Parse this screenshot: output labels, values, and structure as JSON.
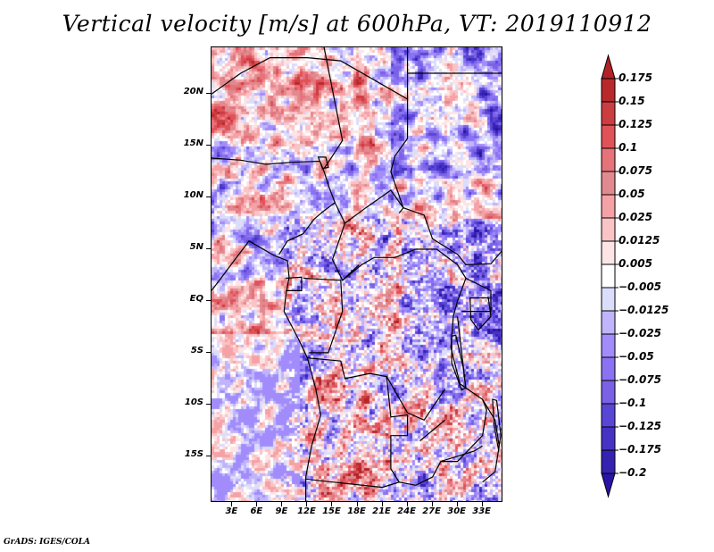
{
  "chart_data": {
    "type": "heatmap",
    "title": "Vertical velocity [m/s] at 600hPa, VT: 2019110912",
    "variable": "Vertical velocity",
    "units": "m/s",
    "level": "600hPa",
    "valid_time": "2019110912",
    "xlabel": "",
    "ylabel": "",
    "xlim_deg_east": [
      0.5,
      35.5
    ],
    "ylim_deg_north": [
      -19.5,
      24.5
    ],
    "x_ticks": [
      {
        "value": 3,
        "label": "3E"
      },
      {
        "value": 6,
        "label": "6E"
      },
      {
        "value": 9,
        "label": "9E"
      },
      {
        "value": 12,
        "label": "12E"
      },
      {
        "value": 15,
        "label": "15E"
      },
      {
        "value": 18,
        "label": "18E"
      },
      {
        "value": 21,
        "label": "21E"
      },
      {
        "value": 24,
        "label": "24E"
      },
      {
        "value": 27,
        "label": "27E"
      },
      {
        "value": 30,
        "label": "30E"
      },
      {
        "value": 33,
        "label": "33E"
      }
    ],
    "y_ticks": [
      {
        "value": 20,
        "label": "20N"
      },
      {
        "value": 15,
        "label": "15N"
      },
      {
        "value": 10,
        "label": "10N"
      },
      {
        "value": 5,
        "label": "5N"
      },
      {
        "value": 0,
        "label": "EQ"
      },
      {
        "value": -5,
        "label": "5S"
      },
      {
        "value": -10,
        "label": "10S"
      },
      {
        "value": -15,
        "label": "15S"
      }
    ],
    "colorbar": {
      "orientation": "vertical",
      "placement": "right",
      "extend": "both",
      "levels": [
        0.175,
        0.15,
        0.125,
        0.1,
        0.075,
        0.05,
        0.025,
        0.0125,
        0.005,
        -0.005,
        -0.0125,
        -0.025,
        -0.05,
        -0.075,
        -0.1,
        -0.125,
        -0.175,
        -0.2
      ],
      "labels": [
        "0.175",
        "0.15",
        "0.125",
        "0.1",
        "0.075",
        "0.05",
        "0.025",
        "0.0125",
        "0.005",
        "−0.005",
        "−0.0125",
        "−0.025",
        "−0.05",
        "−0.075",
        "−0.1",
        "−0.125",
        "−0.175",
        "−0.2"
      ],
      "colors_top_to_bottom": [
        "#b22226",
        "#b9292c",
        "#cc3d41",
        "#e15258",
        "#e6727a",
        "#e08a90",
        "#f5a2a6",
        "#fac3c5",
        "#fde4e5",
        "#ffffff",
        "#dcdcfb",
        "#c0b5fb",
        "#a28cfb",
        "#8a73f2",
        "#7a62e6",
        "#5a46d6",
        "#4633c6",
        "#3622b0",
        "#2a13a6"
      ]
    },
    "map_features": [
      "coastlines",
      "country borders",
      "lakes"
    ],
    "region": "Central Africa"
  },
  "credit": "GrADS: IGES/COLA"
}
